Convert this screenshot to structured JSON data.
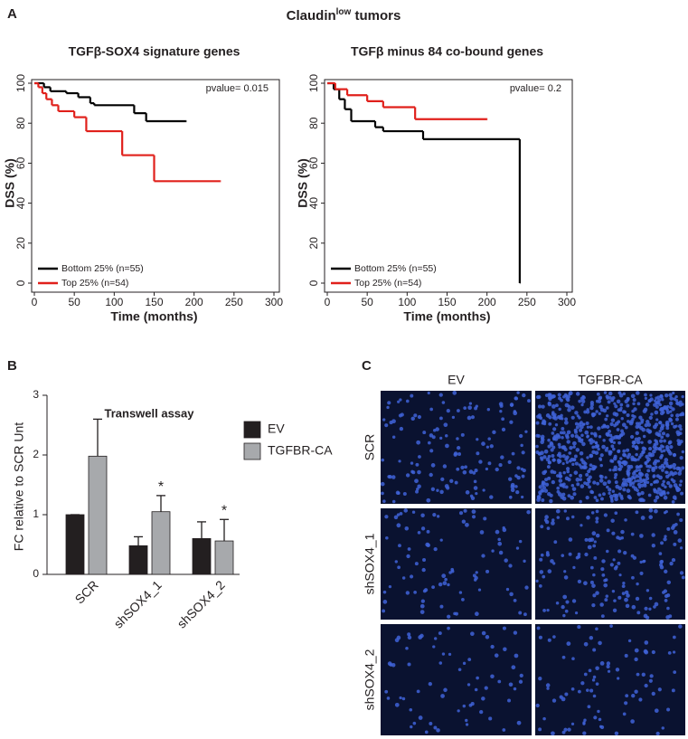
{
  "figure_title": {
    "base": "Claudin",
    "superscript": "low",
    "after": " tumors"
  },
  "panel_labels": [
    "A",
    "B",
    "C"
  ],
  "chart_data": [
    {
      "type": "step",
      "title": "TGFβ-SOX4 signature genes",
      "x_label": "Time (months)",
      "y_label": "DSS (%)",
      "annotation": "pvalue= 0.015",
      "xlim": [
        0,
        300
      ],
      "xticks": [
        0,
        50,
        100,
        150,
        200,
        250,
        300
      ],
      "ylim": [
        0,
        100
      ],
      "yticks": [
        0,
        20,
        40,
        60,
        80,
        100
      ],
      "legend": "lower left",
      "series": [
        {
          "name": "Bottom 25%  (n=55)",
          "color": "#000000",
          "x": [
            0,
            12,
            20,
            40,
            55,
            70,
            75,
            125,
            140,
            190
          ],
          "values": [
            100,
            98,
            96,
            95,
            93,
            90,
            89,
            85,
            81,
            81
          ]
        },
        {
          "name": "Top 25% (n=54)",
          "color": "#e0201b",
          "x": [
            0,
            5,
            10,
            15,
            22,
            30,
            50,
            65,
            110,
            150,
            233
          ],
          "values": [
            100,
            98,
            95,
            92,
            89,
            86,
            83,
            76,
            64,
            51,
            51
          ]
        }
      ]
    },
    {
      "type": "step",
      "title": "TGFβ minus 84 co-bound genes",
      "x_label": "Time (months)",
      "y_label": "DSS (%)",
      "annotation": "pvalue= 0.2",
      "xlim": [
        0,
        300
      ],
      "xticks": [
        0,
        50,
        100,
        150,
        200,
        250,
        300
      ],
      "ylim": [
        0,
        100
      ],
      "yticks": [
        0,
        20,
        40,
        60,
        80,
        100
      ],
      "legend": "lower left",
      "series": [
        {
          "name": "Bottom 25%  (n=55)",
          "color": "#000000",
          "x": [
            0,
            8,
            15,
            22,
            30,
            60,
            70,
            120,
            241
          ],
          "values": [
            100,
            97,
            92,
            87,
            81,
            78,
            76,
            72,
            0
          ]
        },
        {
          "name": "Top 25% (n=54)",
          "color": "#e0201b",
          "x": [
            0,
            10,
            25,
            50,
            70,
            110,
            200
          ],
          "values": [
            100,
            97,
            94,
            91,
            88,
            82,
            82
          ]
        }
      ]
    },
    {
      "type": "bar",
      "title": "Transwell assay",
      "y_label": "FC relative to SCR Unt",
      "categories": [
        "SCR",
        "shSOX4_1",
        "shSOX4_2"
      ],
      "ylim": [
        0,
        3
      ],
      "yticks": [
        0,
        1,
        2,
        3
      ],
      "legend": "upper right",
      "series": [
        {
          "name": "EV",
          "color": "#231f20",
          "values": [
            1.0,
            0.48,
            0.6
          ],
          "errors": [
            0,
            0.15,
            0.28
          ]
        },
        {
          "name": "TGFBR-CA",
          "color": "#a7a9ac",
          "values": [
            1.98,
            1.05,
            0.56
          ],
          "errors": [
            0.62,
            0.27,
            0.36
          ],
          "significance": [
            null,
            "*",
            "*"
          ]
        }
      ]
    }
  ],
  "image_panel": {
    "columns": [
      "EV",
      "TGFBR-CA"
    ],
    "rows": [
      "SCR",
      "shSOX4_1",
      "shSOX4_2"
    ]
  }
}
